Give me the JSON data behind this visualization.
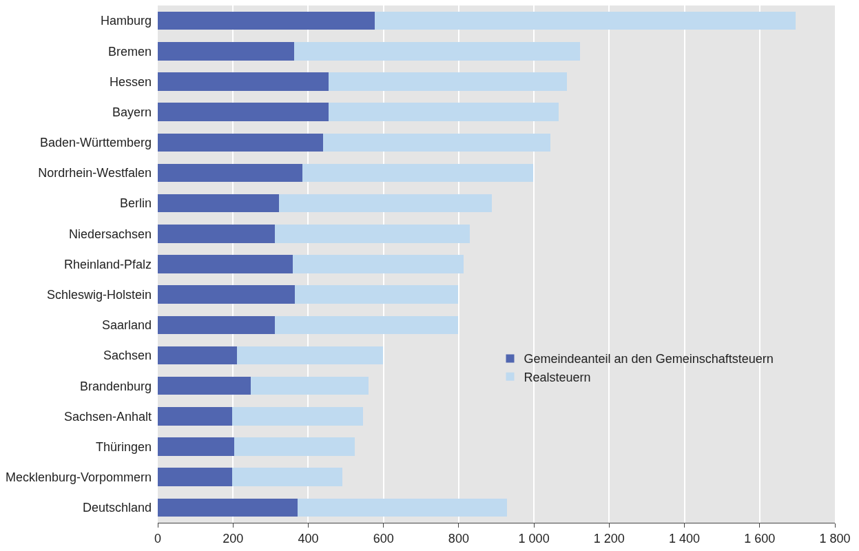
{
  "chart_data": {
    "type": "bar",
    "orientation": "horizontal",
    "stacked": true,
    "categories": [
      "Hamburg",
      "Bremen",
      "Hessen",
      "Bayern",
      "Baden-Württemberg",
      "Nordrhein-Westfalen",
      "Berlin",
      "Niedersachsen",
      "Rheinland-Pfalz",
      "Schleswig-Holstein",
      "Saarland",
      "Sachsen",
      "Brandenburg",
      "Sachsen-Anhalt",
      "Thüringen",
      "Mecklenburg-Vorpommern",
      "Deutschland"
    ],
    "series": [
      {
        "name": "Gemeindeanteil an den Gemeinschaftsteuern",
        "color": "#5166b0",
        "values": [
          577,
          362,
          455,
          455,
          440,
          385,
          322,
          312,
          358,
          364,
          312,
          210,
          248,
          198,
          204,
          198,
          371
        ]
      },
      {
        "name": "Realsteuern",
        "color": "#bfdaf0",
        "values": [
          1118,
          760,
          633,
          610,
          604,
          613,
          566,
          517,
          455,
          434,
          486,
          388,
          312,
          347,
          320,
          293,
          557
        ]
      }
    ],
    "xlim": [
      0,
      1800
    ],
    "xticks": [
      0,
      200,
      400,
      600,
      800,
      {
        "value": 1000,
        "label": "1 000"
      },
      {
        "value": 1200,
        "label": "1 200"
      },
      {
        "value": 1400,
        "label": "1 400"
      },
      {
        "value": 1600,
        "label": "1 600"
      },
      {
        "value": 1800,
        "label": "1 800"
      }
    ],
    "grid": "x",
    "legend": "right"
  }
}
